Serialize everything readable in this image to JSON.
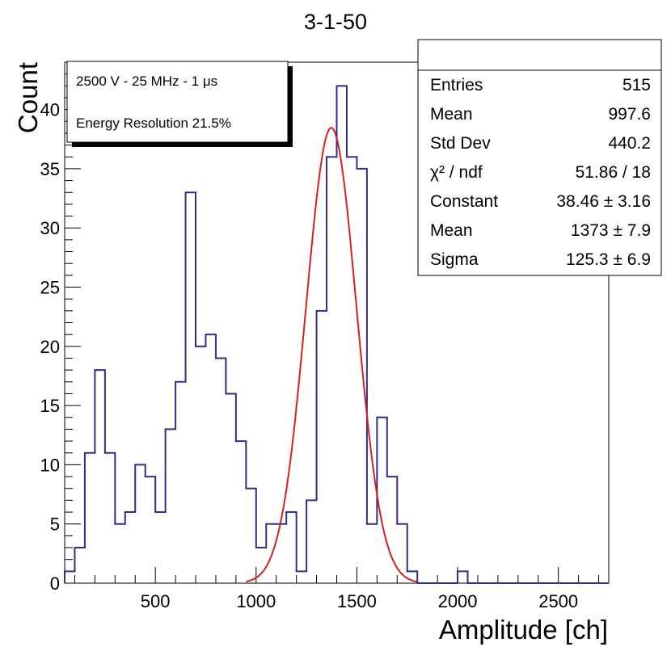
{
  "chart_data": {
    "type": "bar",
    "title": "3-1-50",
    "xlabel": "Amplitude [ch]",
    "ylabel": "Count",
    "xlim": [
      50,
      2750
    ],
    "ylim": [
      0,
      44
    ],
    "x_ticks": [
      500,
      1000,
      1500,
      2000,
      2500
    ],
    "y_ticks": [
      0,
      5,
      10,
      15,
      20,
      25,
      30,
      35,
      40
    ],
    "bin_width": 50,
    "series": [
      {
        "kind": "histogram",
        "color": "#2e2e8c",
        "bin_edges_start": 50,
        "values": [
          1,
          3,
          11,
          18,
          11,
          5,
          6,
          10,
          9,
          6,
          13,
          17,
          33,
          20,
          21,
          19,
          16,
          12,
          8,
          3,
          5,
          5,
          6,
          1,
          7,
          23,
          36,
          42,
          36,
          35,
          5,
          14,
          9,
          5,
          1,
          0,
          0,
          0,
          0,
          1,
          0,
          0,
          0,
          0,
          0,
          0,
          0,
          0,
          0,
          0,
          0,
          0,
          0,
          0
        ]
      },
      {
        "kind": "gaussian_fit",
        "color": "#d42020",
        "constant": 38.46,
        "mean": 1373,
        "sigma": 125.3,
        "range": [
          950,
          1800
        ]
      }
    ],
    "annotation": {
      "line1": "2500 V - 25 MHz - 1 μs",
      "line2": "Energy Resolution 21.5%"
    },
    "stats_box": [
      {
        "label": "Entries",
        "value": "515"
      },
      {
        "label": "Mean",
        "value": "997.6"
      },
      {
        "label": "Std Dev",
        "value": "440.2"
      },
      {
        "label": "χ² / ndf",
        "value": "51.86 / 18"
      },
      {
        "label": "Constant",
        "value": "38.46 ± 3.16"
      },
      {
        "label": "Mean",
        "value": "1373 ± 7.9"
      },
      {
        "label": "Sigma",
        "value": "125.3 ± 6.9"
      }
    ]
  }
}
